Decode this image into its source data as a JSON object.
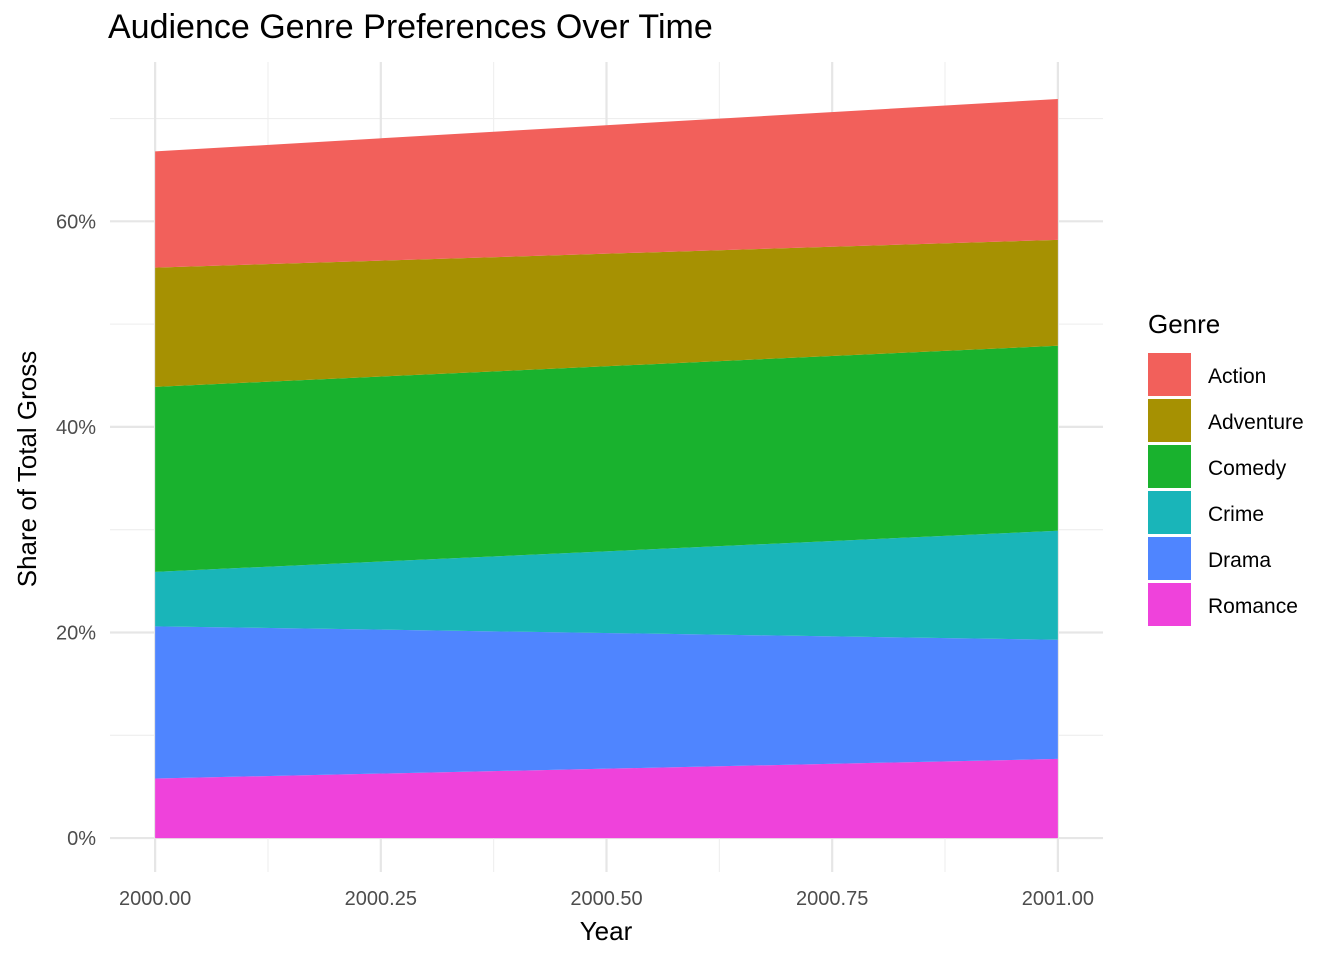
{
  "chart_data": {
    "type": "area",
    "title": "Audience Genre Preferences Over Time",
    "xlabel": "Year",
    "ylabel": "Share of Total Gross",
    "x": [
      2000.0,
      2001.0
    ],
    "xlim": [
      1999.95,
      2001.05
    ],
    "ylim": [
      -0.033,
      0.755
    ],
    "x_ticks": [
      2000.0,
      2000.25,
      2000.5,
      2000.75,
      2001.0
    ],
    "x_tick_labels": [
      "2000.00",
      "2000.25",
      "2000.50",
      "2000.75",
      "2001.00"
    ],
    "y_ticks": [
      0,
      0.2,
      0.4,
      0.6
    ],
    "y_tick_labels": [
      "0%",
      "20%",
      "40%",
      "60%"
    ],
    "stacked": true,
    "grid": true,
    "legend_title": "Genre",
    "legend_position": "right",
    "series": [
      {
        "name": "Romance",
        "color": "#EF42DB",
        "values": [
          0.058,
          0.077
        ]
      },
      {
        "name": "Drama",
        "color": "#4F85FF",
        "values": [
          0.148,
          0.116
        ]
      },
      {
        "name": "Crime",
        "color": "#19B5B9",
        "values": [
          0.053,
          0.106
        ]
      },
      {
        "name": "Comedy",
        "color": "#19B22E",
        "values": [
          0.18,
          0.18
        ]
      },
      {
        "name": "Adventure",
        "color": "#A69102",
        "values": [
          0.116,
          0.103
        ]
      },
      {
        "name": "Action",
        "color": "#F2605B",
        "values": [
          0.113,
          0.137
        ]
      }
    ],
    "legend_order": [
      "Action",
      "Adventure",
      "Comedy",
      "Crime",
      "Drama",
      "Romance"
    ]
  }
}
